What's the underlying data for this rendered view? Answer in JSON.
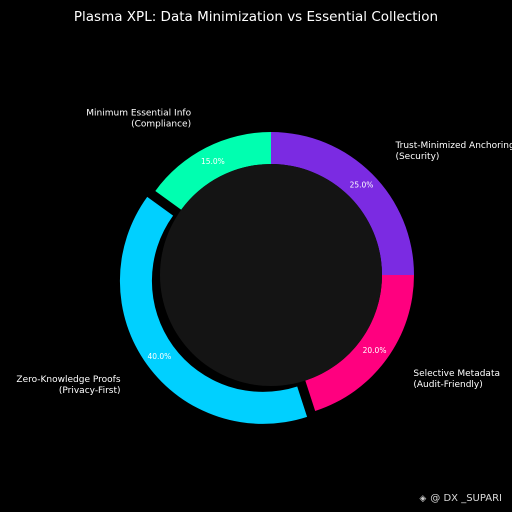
{
  "chart_data": {
    "type": "pie",
    "title": "Plasma XPL: Data Minimization vs Essential Collection",
    "slices": [
      {
        "label": [
          "Trust-Minimized Anchoring",
          "(Security)"
        ],
        "value": 25.0,
        "pct_label": "25.0%",
        "color": "#7b2be2",
        "exploded": false
      },
      {
        "label": [
          "Selective Metadata",
          "(Audit-Friendly)"
        ],
        "value": 20.0,
        "pct_label": "20.0%",
        "color": "#ff007f",
        "exploded": false
      },
      {
        "label": [
          "Zero-Knowledge Proofs",
          "(Privacy-First)"
        ],
        "value": 40.0,
        "pct_label": "40.0%",
        "color": "#00d0ff",
        "exploded": true
      },
      {
        "label": [
          "Minimum Essential Info",
          "(Compliance)"
        ],
        "value": 15.0,
        "pct_label": "15.0%",
        "color": "#00ffb0",
        "exploded": false
      }
    ],
    "center_color": "#141414",
    "background": "#000000"
  },
  "watermark": {
    "logo": "◈",
    "text": "@ DX _SUPARI"
  }
}
